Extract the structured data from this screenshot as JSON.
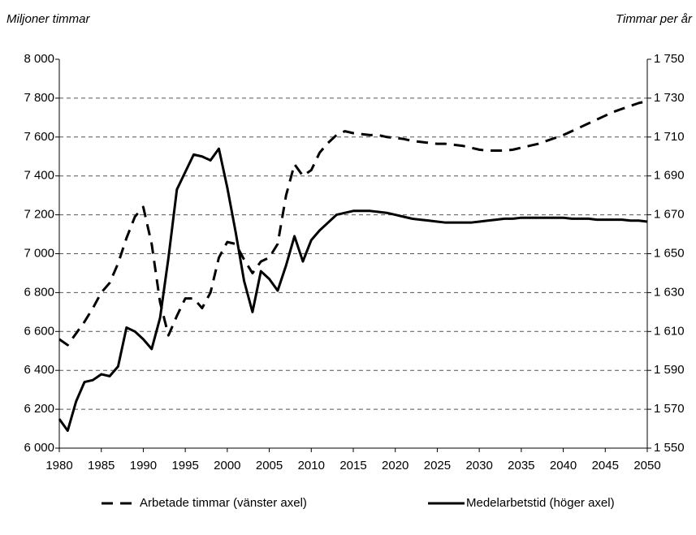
{
  "chart_data": {
    "type": "line",
    "y_label": "Miljoner timmar",
    "y2_label": "Timmar per år",
    "x": [
      1980,
      1981,
      1982,
      1983,
      1984,
      1985,
      1986,
      1987,
      1988,
      1989,
      1990,
      1991,
      1992,
      1993,
      1994,
      1995,
      1996,
      1997,
      1998,
      1999,
      2000,
      2001,
      2002,
      2003,
      2004,
      2005,
      2006,
      2007,
      2008,
      2009,
      2010,
      2011,
      2012,
      2013,
      2014,
      2015,
      2016,
      2017,
      2018,
      2019,
      2020,
      2021,
      2022,
      2023,
      2024,
      2025,
      2026,
      2027,
      2028,
      2029,
      2030,
      2031,
      2032,
      2033,
      2034,
      2035,
      2036,
      2037,
      2038,
      2039,
      2040,
      2041,
      2042,
      2043,
      2044,
      2045,
      2046,
      2047,
      2048,
      2049,
      2050
    ],
    "series": [
      {
        "name": "Arbetade timmar (vänster axel)",
        "color": "#000000",
        "line_style": "dashed",
        "values": [
          6560,
          6530,
          6590,
          6650,
          6720,
          6800,
          6850,
          6950,
          7080,
          7190,
          7240,
          7050,
          6750,
          6580,
          6680,
          6770,
          6770,
          6720,
          6800,
          6980,
          7060,
          7050,
          6970,
          6900,
          6960,
          6980,
          7050,
          7300,
          7460,
          7400,
          7430,
          7520,
          7570,
          7610,
          7630,
          7620,
          7615,
          7610,
          7610,
          7600,
          7595,
          7590,
          7580,
          7575,
          7570,
          7565,
          7565,
          7560,
          7555,
          7545,
          7535,
          7530,
          7530,
          7530,
          7535,
          7545,
          7555,
          7565,
          7580,
          7595,
          7610,
          7630,
          7650,
          7670,
          7690,
          7710,
          7730,
          7745,
          7760,
          7775,
          7785
        ]
      },
      {
        "name": "Medelarbetstid (höger axel)",
        "color": "#000000",
        "line_style": "solid",
        "axis": "y2",
        "values": [
          1565,
          1559,
          1574,
          1584,
          1585,
          1588,
          1587,
          1592,
          1612,
          1610,
          1606,
          1601,
          1617,
          1648,
          1683,
          1692,
          1701,
          1700,
          1698,
          1704,
          1684,
          1661,
          1636,
          1620,
          1641,
          1637,
          1631,
          1644,
          1659,
          1646,
          1657,
          1662,
          1666,
          1670,
          1671,
          1672,
          1672,
          1672,
          1671.5,
          1671,
          1670,
          1669,
          1668,
          1667.5,
          1667,
          1666.5,
          1666,
          1666,
          1666,
          1666,
          1666.5,
          1667,
          1667.5,
          1668,
          1668,
          1668.5,
          1668.5,
          1668.5,
          1668.5,
          1668.5,
          1668.5,
          1668,
          1668,
          1668,
          1667.5,
          1667.5,
          1667.5,
          1667.5,
          1667,
          1667,
          1666.5
        ]
      }
    ],
    "xlim": [
      1980,
      2050
    ],
    "xticks": [
      1980,
      1985,
      1990,
      1995,
      2000,
      2005,
      2010,
      2015,
      2020,
      2025,
      2030,
      2035,
      2040,
      2045,
      2050
    ],
    "ylim": [
      6000,
      8000
    ],
    "yticks": [
      {
        "value": 6000,
        "label": "6 000"
      },
      {
        "value": 6200,
        "label": "6 200"
      },
      {
        "value": 6400,
        "label": "6 400"
      },
      {
        "value": 6600,
        "label": "6 600"
      },
      {
        "value": 6800,
        "label": "6 800"
      },
      {
        "value": 7000,
        "label": "7 000"
      },
      {
        "value": 7200,
        "label": "7 200"
      },
      {
        "value": 7400,
        "label": "7 400"
      },
      {
        "value": 7600,
        "label": "7 600"
      },
      {
        "value": 7800,
        "label": "7 800"
      },
      {
        "value": 8000,
        "label": "8 000"
      }
    ],
    "y2lim": [
      1550,
      1750
    ],
    "y2ticks": [
      {
        "value": 1550,
        "label": "1 550"
      },
      {
        "value": 1570,
        "label": "1 570"
      },
      {
        "value": 1590,
        "label": "1 590"
      },
      {
        "value": 1610,
        "label": "1 610"
      },
      {
        "value": 1630,
        "label": "1 630"
      },
      {
        "value": 1650,
        "label": "1 650"
      },
      {
        "value": 1670,
        "label": "1 670"
      },
      {
        "value": 1690,
        "label": "1 690"
      },
      {
        "value": 1710,
        "label": "1 710"
      },
      {
        "value": 1730,
        "label": "1 730"
      },
      {
        "value": 1750,
        "label": "1 750"
      }
    ],
    "grid": true,
    "legend": "bottom"
  }
}
